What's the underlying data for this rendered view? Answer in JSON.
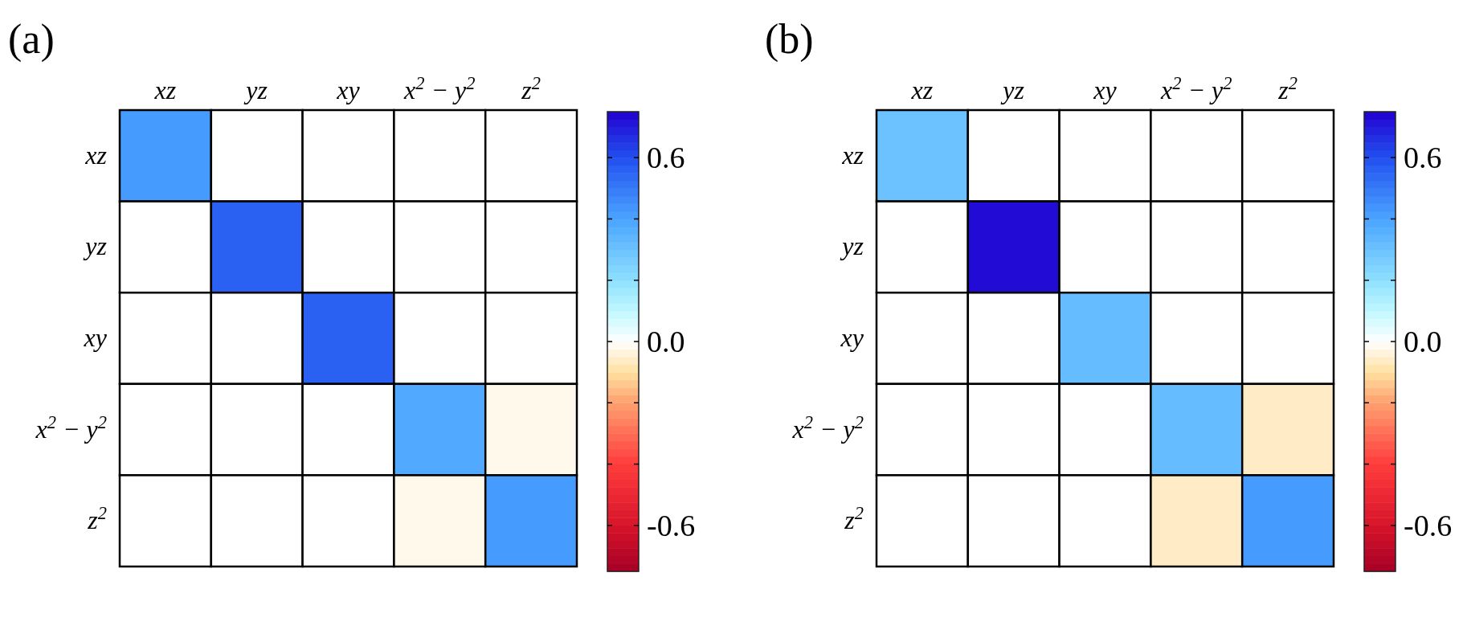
{
  "chart_data": [
    {
      "type": "heatmap",
      "title": "(a)",
      "categories": [
        "xz",
        "yz",
        "xy",
        "x$^{2}$ − y$^{2}$",
        "z$^{2}$"
      ],
      "y_categories": [
        "xz",
        "yz",
        "xy",
        "x$^{2}$ − y$^{2}$",
        "z$^{2}$"
      ],
      "cells": [
        [
          0.42,
          0,
          0,
          0,
          0
        ],
        [
          0,
          0.56,
          0,
          0,
          0
        ],
        [
          0,
          0,
          0.56,
          0,
          0
        ],
        [
          0,
          0,
          0,
          0.38,
          -0.02
        ],
        [
          0,
          0,
          0,
          -0.02,
          0.42
        ]
      ],
      "clim": [
        -0.75,
        0.75
      ],
      "cticks": [
        {
          "value": -0.6,
          "label": "-0.6"
        },
        {
          "value": -0.4,
          "label": null
        },
        {
          "value": -0.2,
          "label": null
        },
        {
          "value": 0,
          "label": "0.0"
        },
        {
          "value": 0.2,
          "label": null
        },
        {
          "value": 0.4,
          "label": null
        },
        {
          "value": 0.6,
          "label": "0.6"
        }
      ]
    },
    {
      "type": "heatmap",
      "title": "(b)",
      "categories": [
        "xz",
        "yz",
        "xy",
        "x$^{2}$ − y$^{2}$",
        "z$^{2}$"
      ],
      "y_categories": [
        "xz",
        "yz",
        "xy",
        "x$^{2}$ − y$^{2}$",
        "z$^{2}$"
      ],
      "cells": [
        [
          0.3,
          0,
          0,
          0,
          0
        ],
        [
          0,
          0.73,
          0,
          0,
          0
        ],
        [
          0,
          0,
          0.32,
          0,
          0
        ],
        [
          0,
          0,
          0,
          0.32,
          -0.06
        ],
        [
          0,
          0,
          0,
          -0.06,
          0.42
        ]
      ],
      "clim": [
        -0.75,
        0.75
      ],
      "cticks": [
        {
          "value": -0.6,
          "label": "-0.6"
        },
        {
          "value": -0.4,
          "label": null
        },
        {
          "value": -0.2,
          "label": null
        },
        {
          "value": 0,
          "label": "0.0"
        },
        {
          "value": 0.2,
          "label": null
        },
        {
          "value": 0.4,
          "label": null
        },
        {
          "value": 0.6,
          "label": "0.6"
        }
      ]
    }
  ]
}
